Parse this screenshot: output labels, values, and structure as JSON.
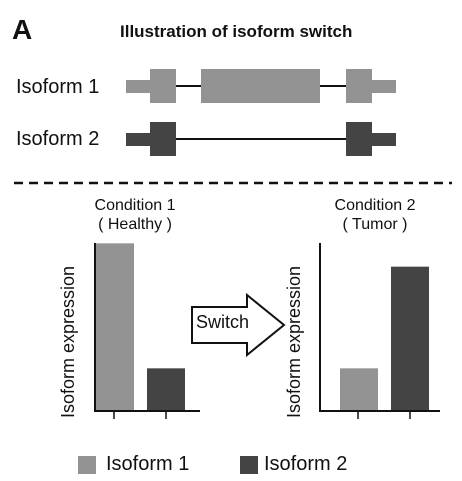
{
  "header": {
    "panel_letter": "A",
    "title": "Illustration of isoform switch"
  },
  "structures": {
    "isoform1_label": "Isoform  1",
    "isoform2_label": "Isoform  2"
  },
  "conditions": {
    "left_line1": "Condition 1",
    "left_line2": "( Healthy )",
    "right_line1": "Condition 2",
    "right_line2": "( Tumor )"
  },
  "arrow_label": "Switch",
  "legend": {
    "isoform1": "Isoform  1",
    "isoform2": "Isoform  2"
  },
  "colors": {
    "isoform1": "#939393",
    "isoform2": "#444444"
  },
  "chart_data": [
    {
      "type": "bar",
      "title": "Condition 1 ( Healthy )",
      "ylabel": "Isoform expression",
      "categories": [
        "Isoform 1",
        "Isoform 2"
      ],
      "values": [
        1.0,
        0.25
      ],
      "ylim": [
        0,
        1.05
      ]
    },
    {
      "type": "bar",
      "title": "Condition 2 ( Tumor )",
      "ylabel": "Isoform expression",
      "categories": [
        "Isoform 1",
        "Isoform 2"
      ],
      "values": [
        0.25,
        0.86
      ],
      "ylim": [
        0,
        1.05
      ]
    }
  ]
}
